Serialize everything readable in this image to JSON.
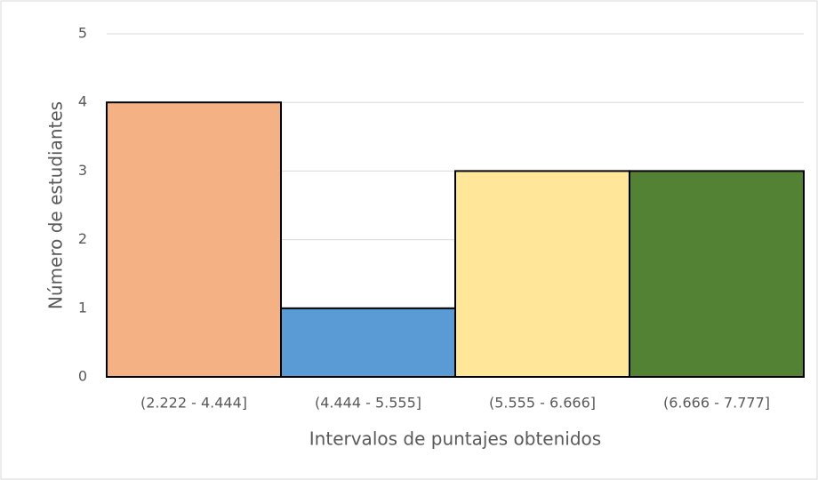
{
  "chart_data": {
    "type": "bar",
    "y_label": "Número de estudiantes",
    "x_label": "Intervalos de puntajes obtenidos",
    "categories": [
      "(2.222 - 4.444]",
      "(4.444 - 5.555]",
      "(5.555 - 6.666]",
      "(6.666 - 7.777]"
    ],
    "values": [
      4,
      1,
      3,
      3
    ],
    "colors": [
      "#f4b183",
      "#5b9bd5",
      "#ffe699",
      "#548235"
    ],
    "ylim": [
      0,
      5
    ],
    "yticks": [
      0,
      1,
      2,
      3,
      4,
      5
    ],
    "grid": true
  }
}
